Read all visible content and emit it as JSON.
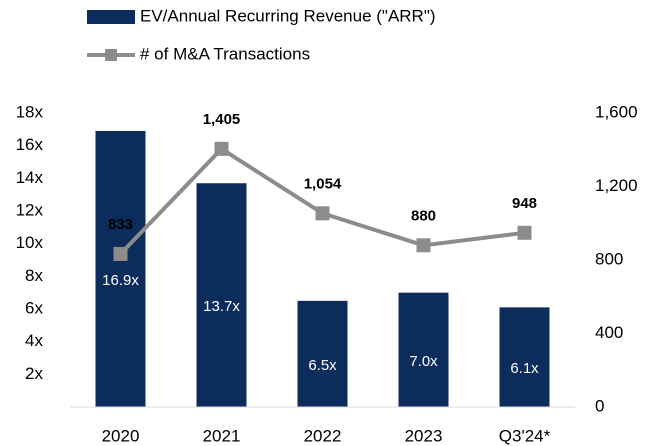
{
  "chart_data": {
    "type": "bar",
    "categories": [
      "2020",
      "2021",
      "2022",
      "2023",
      "Q3'24*"
    ],
    "series": [
      {
        "name": "EV/Annual Recurring Revenue (\"ARR\")",
        "type": "bar",
        "color": "#0c2d5c",
        "values": [
          16.9,
          13.7,
          6.5,
          7.0,
          6.1
        ],
        "value_labels": [
          "16.9x",
          "13.7x",
          "6.5x",
          "7.0x",
          "6.1x"
        ]
      },
      {
        "name": "# of M&A Transactions",
        "type": "line",
        "axis": "y2",
        "color": "#8c8c8c",
        "values": [
          833,
          1405,
          1054,
          880,
          948
        ],
        "value_labels": [
          "833",
          "1,405",
          "1,054",
          "880",
          "948"
        ]
      }
    ],
    "ylim": [
      0,
      18
    ],
    "yticks": [
      {
        "value": 2,
        "label": "2x"
      },
      {
        "value": 4,
        "label": "4x"
      },
      {
        "value": 6,
        "label": "6x"
      },
      {
        "value": 8,
        "label": "8x"
      },
      {
        "value": 10,
        "label": "10x"
      },
      {
        "value": 12,
        "label": "12x"
      },
      {
        "value": 14,
        "label": "14x"
      },
      {
        "value": 16,
        "label": "16x"
      },
      {
        "value": 18,
        "label": "18x"
      }
    ],
    "y2lim": [
      0,
      1600
    ],
    "y2ticks": [
      0,
      400,
      800,
      {
        "value": 1200,
        "label": "1,200"
      },
      {
        "value": 1600,
        "label": "1,600"
      }
    ],
    "grid": false
  }
}
